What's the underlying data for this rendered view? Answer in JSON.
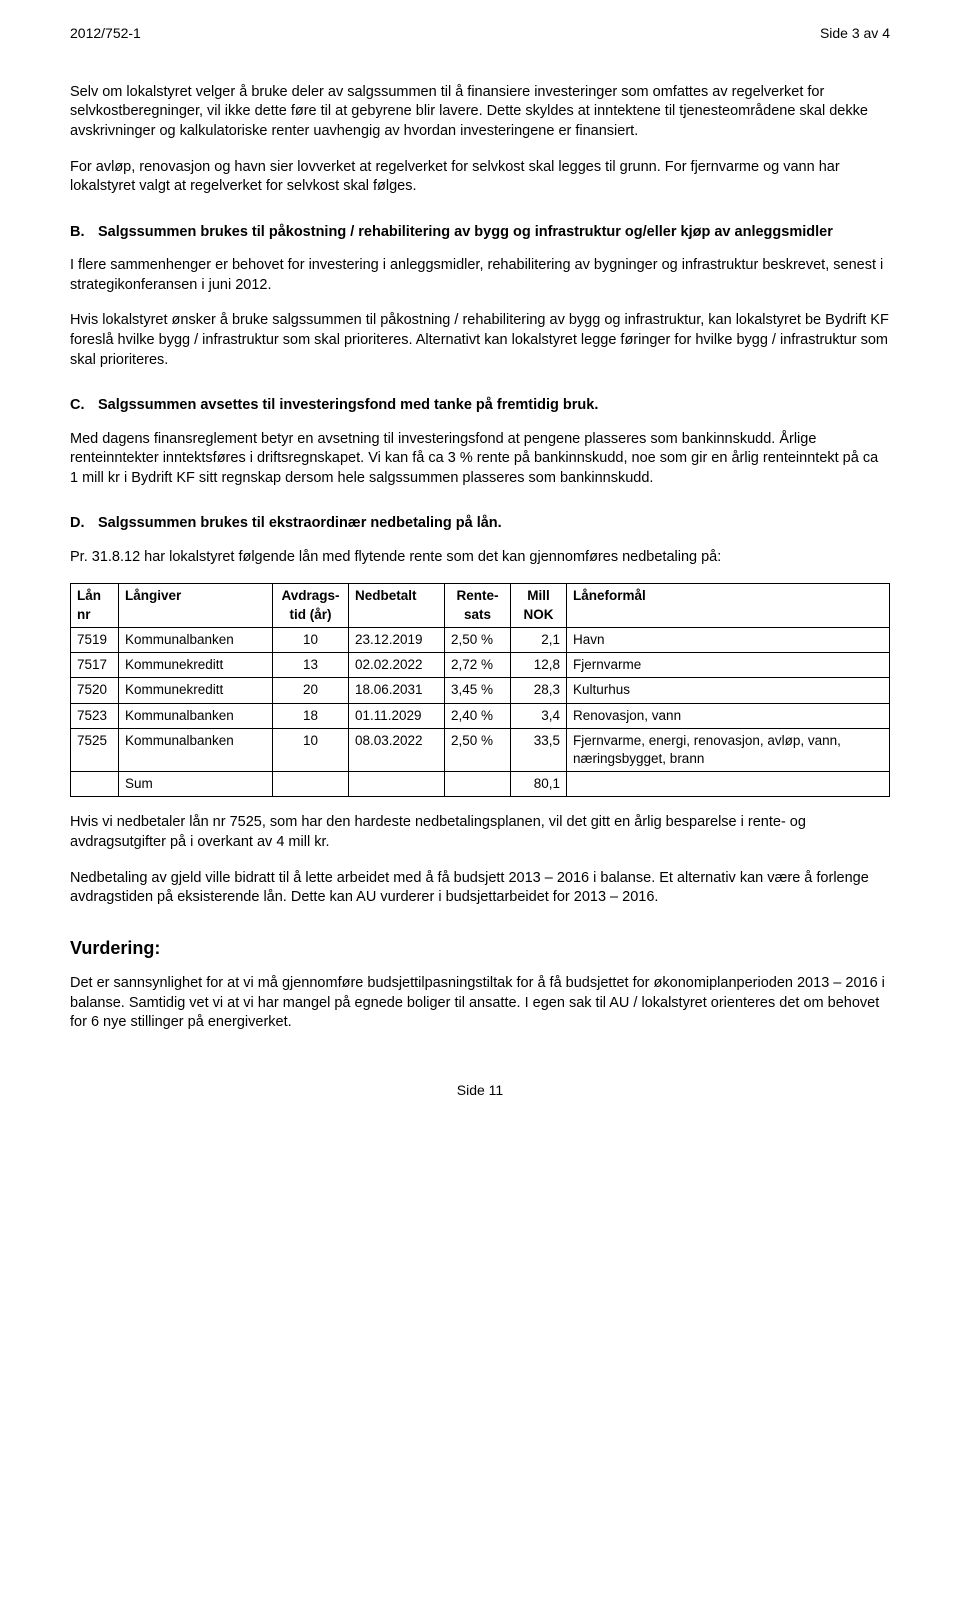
{
  "header": {
    "left": "2012/752-1",
    "right": "Side 3 av 4"
  },
  "p1": "Selv om lokalstyret velger å bruke deler av salgssummen til å finansiere investeringer som omfattes av regelverket for selvkostberegninger, vil ikke dette føre til at gebyrene blir lavere. Dette skyldes at inntektene til tjenesteområdene skal dekke avskrivninger og kalkulatoriske renter uavhengig av hvordan investeringene er finansiert.",
  "p2": "For avløp, renovasjon og havn sier lovverket at regelverket for selvkost skal legges til grunn. For fjernvarme og vann har lokalstyret valgt at regelverket for selvkost skal følges.",
  "secB": {
    "letter": "B.",
    "title": "Salgssummen brukes til påkostning / rehabilitering av bygg og infrastruktur og/eller kjøp av anleggsmidler"
  },
  "p3": "I flere sammenhenger er behovet for investering i anleggsmidler, rehabilitering av bygninger og infrastruktur beskrevet, senest i strategikonferansen i juni 2012.",
  "p4": "Hvis lokalstyret ønsker å bruke salgssummen til påkostning / rehabilitering av bygg og infrastruktur, kan lokalstyret be Bydrift KF foreslå hvilke bygg / infrastruktur som skal prioriteres. Alternativt kan lokalstyret legge føringer for hvilke bygg / infrastruktur som skal prioriteres.",
  "secC": {
    "letter": "C.",
    "title": "Salgssummen avsettes til investeringsfond med tanke på fremtidig bruk."
  },
  "p5": "Med dagens finansreglement betyr en avsetning til investeringsfond at pengene plasseres som bankinnskudd. Årlige renteinntekter inntektsføres i driftsregnskapet. Vi kan få ca 3 % rente på bankinnskudd, noe som gir en årlig renteinntekt på ca 1 mill kr i Bydrift KF sitt regnskap dersom hele salgssummen plasseres som bankinnskudd.",
  "secD": {
    "letter": "D.",
    "title": "Salgssummen brukes til ekstraordinær nedbetaling på lån."
  },
  "p6": "Pr. 31.8.12 har lokalstyret følgende lån med flytende rente som det kan gjennomføres nedbetaling på:",
  "loanTable": {
    "columns": {
      "c0": "Lån nr",
      "c1": "Långiver",
      "c2": "Avdrags-tid (år)",
      "c3": "Nedbetalt",
      "c4": "Rente-sats",
      "c5": "Mill NOK",
      "c6": "Låneformål"
    },
    "widths": [
      "48px",
      "154px",
      "76px",
      "96px",
      "66px",
      "56px",
      "auto"
    ],
    "rows": [
      {
        "c0": "7519",
        "c1": "Kommunalbanken",
        "c2": "10",
        "c3": "23.12.2019",
        "c4": "2,50 %",
        "c5": "2,1",
        "c6": "Havn"
      },
      {
        "c0": "7517",
        "c1": "Kommunekreditt",
        "c2": "13",
        "c3": "02.02.2022",
        "c4": "2,72 %",
        "c5": "12,8",
        "c6": "Fjernvarme"
      },
      {
        "c0": "7520",
        "c1": "Kommunekreditt",
        "c2": "20",
        "c3": "18.06.2031",
        "c4": "3,45 %",
        "c5": "28,3",
        "c6": "Kulturhus"
      },
      {
        "c0": "7523",
        "c1": "Kommunalbanken",
        "c2": "18",
        "c3": "01.11.2029",
        "c4": "2,40 %",
        "c5": "3,4",
        "c6": "Renovasjon, vann"
      },
      {
        "c0": "7525",
        "c1": "Kommunalbanken",
        "c2": "10",
        "c3": "08.03.2022",
        "c4": "2,50 %",
        "c5": "33,5",
        "c6": "Fjernvarme, energi, renovasjon, avløp, vann, næringsbygget, brann"
      }
    ],
    "sumLabel": "Sum",
    "sumValue": "80,1"
  },
  "p7": "Hvis vi nedbetaler lån nr 7525, som har den hardeste nedbetalingsplanen, vil det gitt en årlig besparelse i rente- og avdragsutgifter på i overkant av 4 mill kr.",
  "p8": "Nedbetaling av gjeld ville bidratt til å lette arbeidet med å få budsjett 2013 – 2016 i balanse. Et alternativ kan være å forlenge avdragstiden på eksisterende lån. Dette kan AU vurderer i budsjettarbeidet for 2013 – 2016.",
  "vurderingHeading": "Vurdering:",
  "p9": "Det er sannsynlighet for at vi må gjennomføre budsjettilpasningstiltak for å få budsjettet for økonomiplanperioden 2013 – 2016 i balanse. Samtidig vet vi at vi har mangel på egnede boliger til ansatte. I egen sak til AU / lokalstyret orienteres det om behovet for 6 nye stillinger på energiverket.",
  "footer": "Side 11"
}
